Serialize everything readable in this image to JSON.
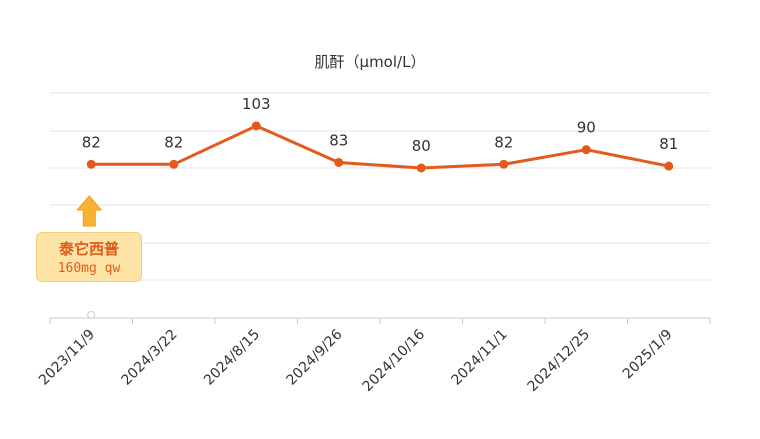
{
  "chart_data": {
    "type": "line",
    "title": "肌酐（µmol/L）",
    "categories": [
      "2023/11/9",
      "2024/3/22",
      "2024/8/15",
      "2024/9/26",
      "2024/10/16",
      "2024/11/1",
      "2024/12/25",
      "2025/1/9"
    ],
    "values": [
      82,
      82,
      103,
      83,
      80,
      82,
      90,
      81
    ],
    "color": "#e45a1c",
    "grid": true,
    "annotation": {
      "at_category": "2023/11/9",
      "line1": "泰它西普",
      "line2": "160mg qw",
      "arrow_icon": "arrow-up-icon"
    }
  }
}
